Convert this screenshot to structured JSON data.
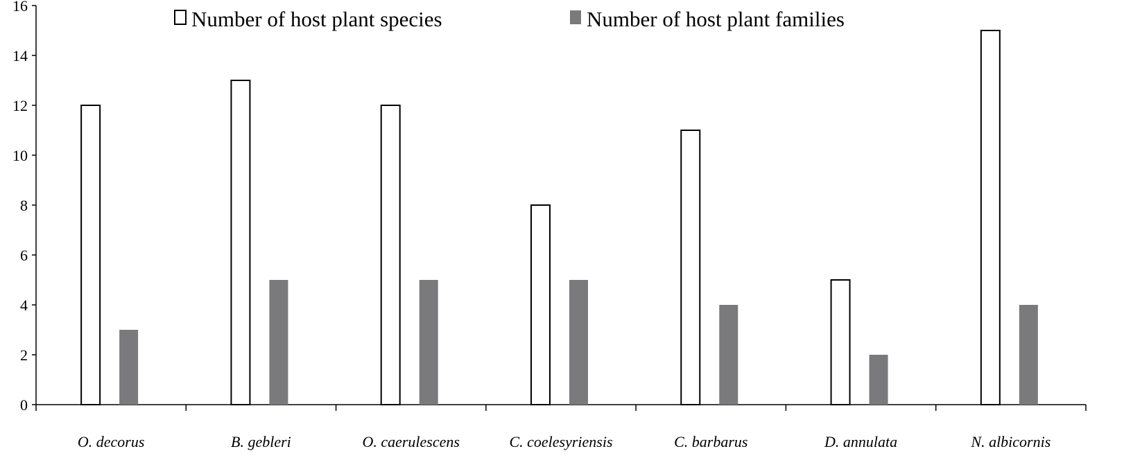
{
  "chart_data": {
    "type": "bar",
    "title": "",
    "xlabel": "",
    "ylabel": "",
    "ylim": [
      0,
      16
    ],
    "y_ticks": [
      "0",
      "2",
      "4",
      "6",
      "8",
      "10",
      "12",
      "14",
      "16"
    ],
    "grid": false,
    "legend_position": "top",
    "categories": [
      "O. decorus",
      "B. gebleri",
      "O. caerulescens",
      "C. coelesyriensis",
      "C. barbarus",
      "D. annulata",
      "N. albicornis"
    ],
    "series": [
      {
        "name": "Number of host plant species",
        "values": [
          12,
          13,
          12,
          8,
          11,
          5,
          15
        ],
        "color": "#ffffff",
        "stroke": "#000000"
      },
      {
        "name": "Number of host plant families",
        "values": [
          3,
          5,
          5,
          5,
          4,
          2,
          4
        ],
        "color": "#7a7a7c",
        "stroke": "none"
      }
    ]
  }
}
